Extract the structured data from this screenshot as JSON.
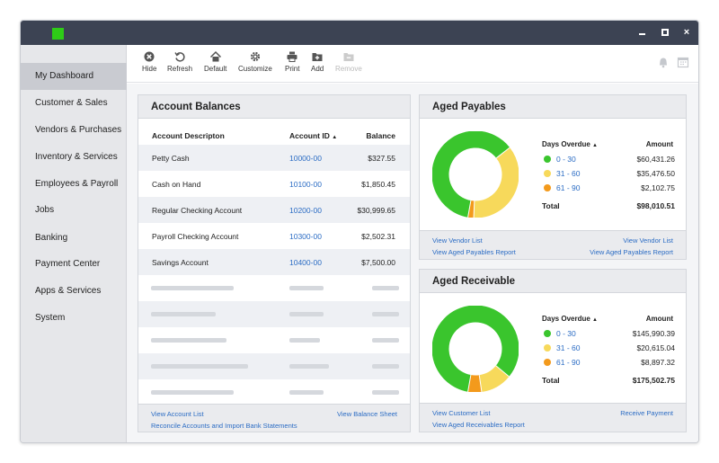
{
  "window": {
    "brand_color": "#2ecc17",
    "controls": {
      "minimize": "minimize-icon",
      "maximize": "maximize-icon",
      "close": "×"
    }
  },
  "sidebar": {
    "items": [
      {
        "label": "My Dashboard",
        "active": true
      },
      {
        "label": "Customer & Sales"
      },
      {
        "label": "Vendors & Purchases"
      },
      {
        "label": "Inventory & Services"
      },
      {
        "label": "Employees & Payroll"
      },
      {
        "label": "Jobs"
      },
      {
        "label": "Banking"
      },
      {
        "label": "Payment Center"
      },
      {
        "label": "Apps & Services"
      },
      {
        "label": "System"
      }
    ]
  },
  "toolbar": {
    "hide": "Hide",
    "refresh": "Refresh",
    "default": "Default",
    "customize": "Customize",
    "print": "Print",
    "add": "Add",
    "remove": "Remove"
  },
  "account_balances": {
    "title": "Account Balances",
    "col_description": "Account Descripton",
    "col_id": "Account ID",
    "col_balance": "Balance",
    "rows": [
      {
        "description": "Petty Cash",
        "id": "10000-00",
        "balance": "$327.55"
      },
      {
        "description": "Cash on Hand",
        "id": "10100-00",
        "balance": "$1,850.45"
      },
      {
        "description": "Regular Checking Account",
        "id": "10200-00",
        "balance": "$30,999.65"
      },
      {
        "description": "Payroll Checking Account",
        "id": "10300-00",
        "balance": "$2,502.31"
      },
      {
        "description": "Savings Account",
        "id": "10400-00",
        "balance": "$7,500.00"
      }
    ],
    "footer": {
      "view_account_list": "View Account List",
      "reconcile": "Reconcile Accounts and Import Bank Statements",
      "view_balance_sheet": "View Balance Sheet"
    }
  },
  "aged_payables": {
    "title": "Aged Payables",
    "col_days": "Days Overdue",
    "col_amount": "Amount",
    "rows": [
      {
        "label": "0 - 30",
        "amount": "$60,431.26",
        "value": 60431.26,
        "color": "#3ac52d"
      },
      {
        "label": "31 - 60",
        "amount": "$35,476.50",
        "value": 35476.5,
        "color": "#f7d95b"
      },
      {
        "label": "61 - 90",
        "amount": "$2,102.75",
        "value": 2102.75,
        "color": "#f39a1c"
      }
    ],
    "total_label": "Total",
    "total": "$98,010.51",
    "footer": {
      "left1": "View Vendor List",
      "left2": "View Aged Payables Report",
      "right1": "View Vendor List",
      "right2": "View Aged Payables Report"
    }
  },
  "aged_receivable": {
    "title": "Aged Receivable",
    "col_days": "Days Overdue",
    "col_amount": "Amount",
    "rows": [
      {
        "label": "0 - 30",
        "amount": "$145,990.39",
        "value": 145990.39,
        "color": "#3ac52d"
      },
      {
        "label": "31 - 60",
        "amount": "$20,615.04",
        "value": 20615.04,
        "color": "#f7d95b"
      },
      {
        "label": "61 - 90",
        "amount": "$8,897.32",
        "value": 8897.32,
        "color": "#f39a1c"
      }
    ],
    "total_label": "Total",
    "total": "$175,502.75",
    "footer": {
      "left1": "View Customer List",
      "left2": "View Aged Receivables Report",
      "right1": "Receive Payment"
    }
  }
}
